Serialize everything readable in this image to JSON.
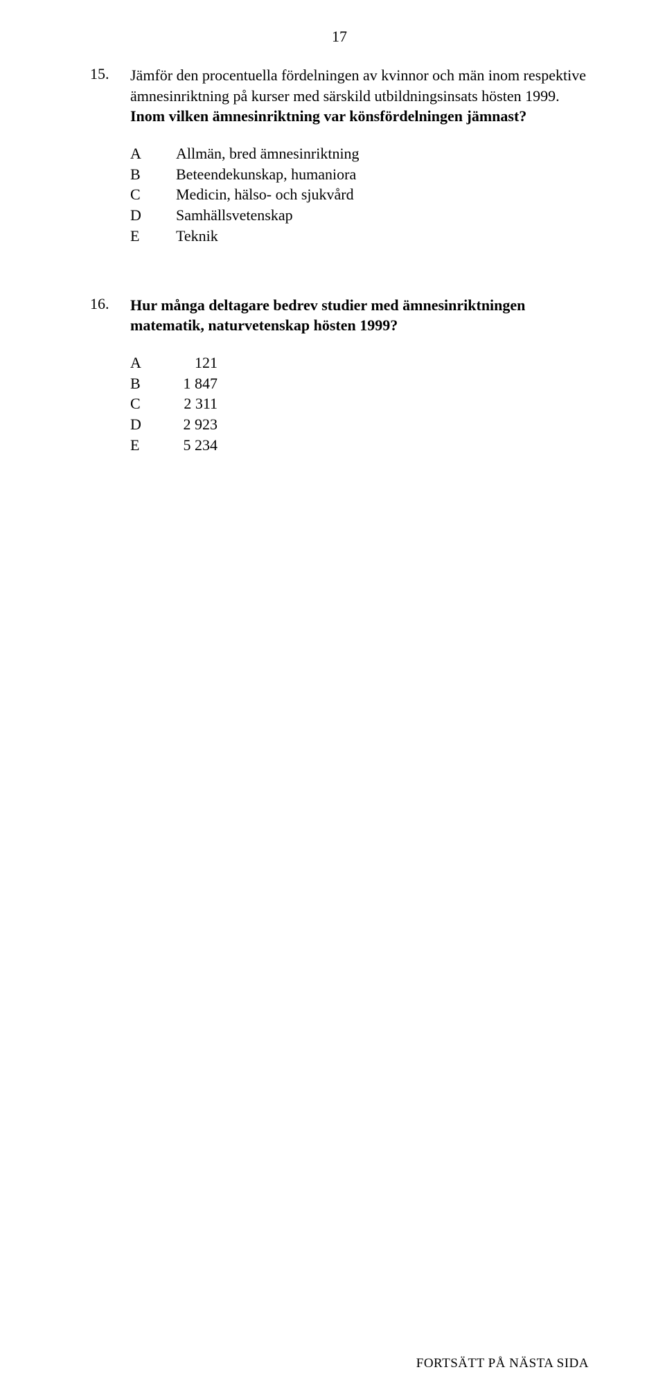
{
  "page_number": "17",
  "q15": {
    "number": "15.",
    "text_plain": "Jämför den procentuella fördelningen av kvinnor och män inom respektive ämnesinriktning på kurser med särskild utbildningsinsats hösten 1999. ",
    "text_bold": "Inom vilken ämnesinriktning var könsfördelningen jämnast?",
    "options": [
      {
        "letter": "A",
        "text": "Allmän, bred ämnesinriktning"
      },
      {
        "letter": "B",
        "text": "Beteendekunskap, humaniora"
      },
      {
        "letter": "C",
        "text": "Medicin, hälso- och sjukvård"
      },
      {
        "letter": "D",
        "text": "Samhällsvetenskap"
      },
      {
        "letter": "E",
        "text": "Teknik"
      }
    ]
  },
  "q16": {
    "number": "16.",
    "text_bold": "Hur många deltagare bedrev studier med ämnesinriktningen matematik, naturvetenskap hösten 1999?",
    "options": [
      {
        "letter": "A",
        "text": "121"
      },
      {
        "letter": "B",
        "text": "1 847"
      },
      {
        "letter": "C",
        "text": "2 311"
      },
      {
        "letter": "D",
        "text": "2 923"
      },
      {
        "letter": "E",
        "text": "5 234"
      }
    ]
  },
  "footer": "FORTSÄTT PÅ NÄSTA SIDA",
  "colors": {
    "background": "#ffffff",
    "text": "#000000"
  },
  "typography": {
    "family": "Times New Roman",
    "body_size_pt": 16,
    "footer_size_pt": 14
  }
}
